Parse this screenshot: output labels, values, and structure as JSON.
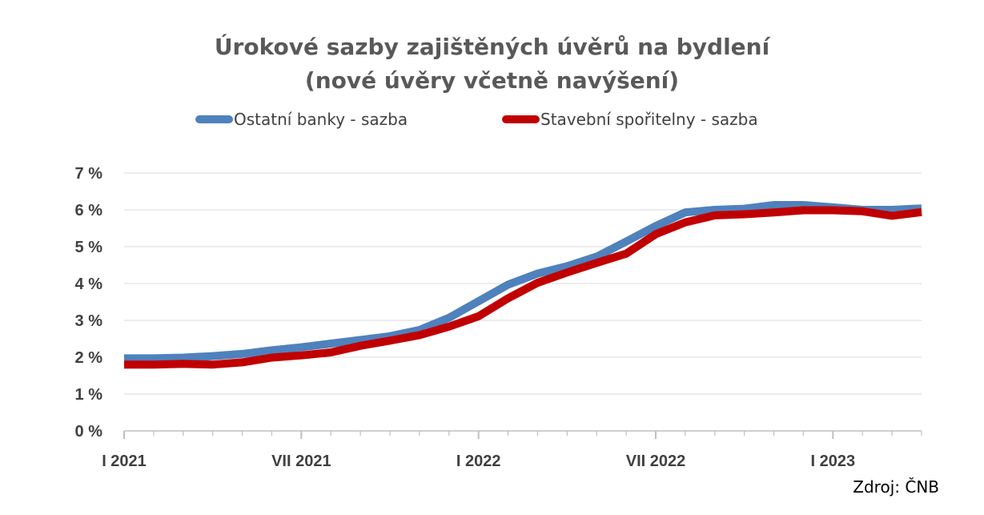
{
  "chart_data": {
    "type": "line",
    "title_lines": [
      "Úrokové sazby zajištěných úvěrů na bydlení",
      "(nové úvěry včetně navýšení)"
    ],
    "xlabel": "",
    "ylabel": "",
    "x_tick_labels": [
      "I 2021",
      "VII 2021",
      "I 2022",
      "VII 2022",
      "I 2023"
    ],
    "x_periods": [
      "2021-01",
      "2021-02",
      "2021-03",
      "2021-04",
      "2021-05",
      "2021-06",
      "2021-07",
      "2021-08",
      "2021-09",
      "2021-10",
      "2021-11",
      "2021-12",
      "2022-01",
      "2022-02",
      "2022-03",
      "2022-04",
      "2022-05",
      "2022-06",
      "2022-07",
      "2022-08",
      "2022-09",
      "2022-10",
      "2022-11",
      "2022-12",
      "2023-01",
      "2023-02",
      "2023-03",
      "2023-04"
    ],
    "y_tick_labels": [
      "0 %",
      "1 %",
      "2 %",
      "3 %",
      "4 %",
      "5 %",
      "6 %",
      "7 %"
    ],
    "ylim": [
      0,
      7
    ],
    "grid": true,
    "legend_position": "top",
    "series": [
      {
        "name": "Ostatní banky - sazba",
        "color": "#4F81BD",
        "values": [
          1.97,
          1.97,
          1.99,
          2.03,
          2.09,
          2.19,
          2.27,
          2.37,
          2.47,
          2.57,
          2.74,
          3.07,
          3.52,
          3.97,
          4.27,
          4.47,
          4.73,
          5.14,
          5.56,
          5.93,
          6.0,
          6.03,
          6.13,
          6.13,
          6.07,
          6.0,
          6.0,
          6.04
        ]
      },
      {
        "name": "Stavební spořitelny - sazba",
        "color": "#C00000",
        "values": [
          1.8,
          1.8,
          1.82,
          1.8,
          1.86,
          1.99,
          2.05,
          2.13,
          2.31,
          2.45,
          2.6,
          2.83,
          3.11,
          3.6,
          4.02,
          4.3,
          4.56,
          4.81,
          5.34,
          5.66,
          5.85,
          5.88,
          5.93,
          5.99,
          5.99,
          5.96,
          5.84,
          5.94
        ]
      }
    ]
  },
  "source_note": "Zdroj: ČNB",
  "colors": {
    "title": "#595959",
    "axis_text": "#404040",
    "gridline": "#D9D9D9",
    "axis_line": "#BFBFBF"
  }
}
